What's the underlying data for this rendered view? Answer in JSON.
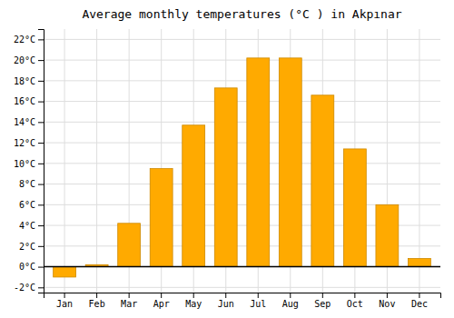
{
  "chart_data": {
    "type": "bar",
    "title": "Average monthly temperatures (°C ) in Akpınar",
    "categories": [
      "Jan",
      "Feb",
      "Mar",
      "Apr",
      "May",
      "Jun",
      "Jul",
      "Aug",
      "Sep",
      "Oct",
      "Nov",
      "Dec"
    ],
    "values": [
      -1.0,
      0.2,
      4.2,
      9.5,
      13.7,
      17.3,
      20.2,
      20.2,
      16.6,
      11.4,
      6.0,
      0.8
    ],
    "color": "#FFAA00",
    "ylim": [
      -2.5,
      23.0
    ],
    "yticks": [
      {
        "value": -2,
        "label": "-2°C"
      },
      {
        "value": 0,
        "label": "0°C"
      },
      {
        "value": 2,
        "label": "2°C"
      },
      {
        "value": 4,
        "label": "4°C"
      },
      {
        "value": 6,
        "label": "6°C"
      },
      {
        "value": 8,
        "label": "8°C"
      },
      {
        "value": 10,
        "label": "10°C"
      },
      {
        "value": 12,
        "label": "12°C"
      },
      {
        "value": 14,
        "label": "14°C"
      },
      {
        "value": 16,
        "label": "16°C"
      },
      {
        "value": 18,
        "label": "18°C"
      },
      {
        "value": 20,
        "label": "20°C"
      },
      {
        "value": 22,
        "label": "22°C"
      }
    ],
    "grid": true
  }
}
